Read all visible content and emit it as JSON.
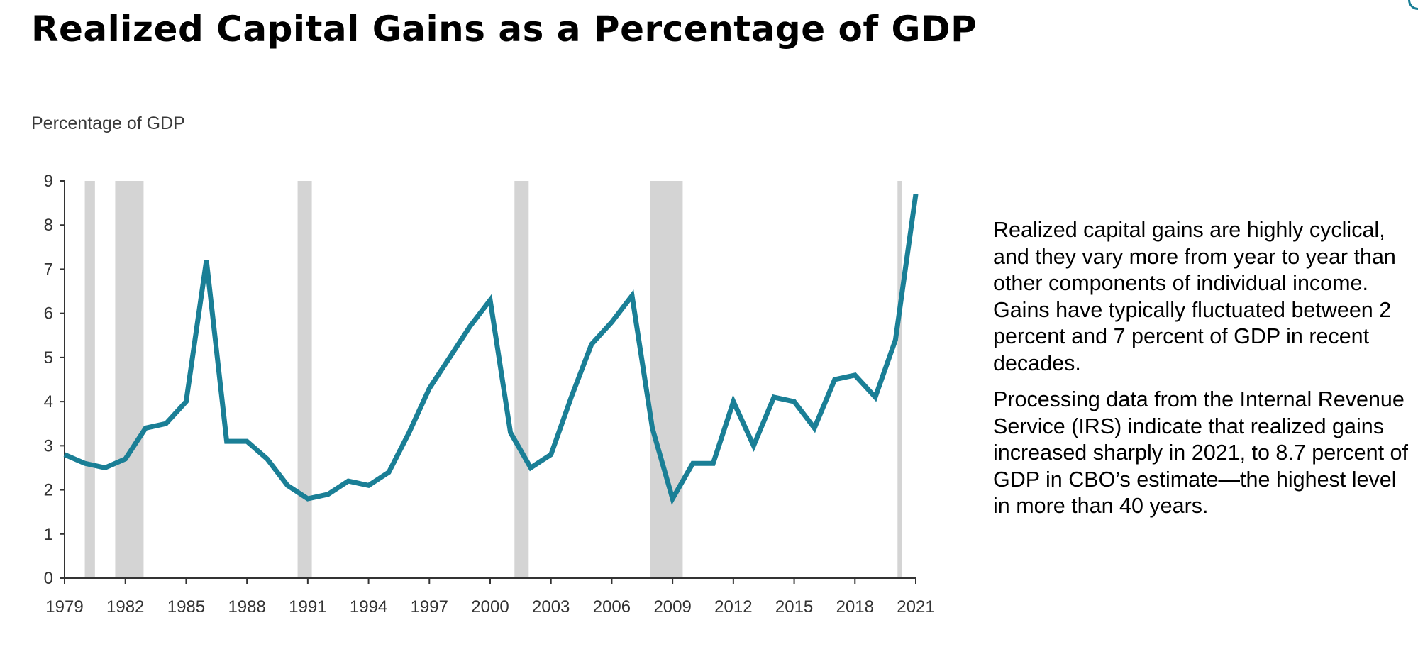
{
  "title": "Realized Capital Gains as a Percentage of GDP",
  "paragraphs": [
    "Realized capital gains are highly cyclical, and they vary more from year to year than other components of individual income. Gains have typically fluctuated between 2 percent and 7 percent of GDP in recent decades.",
    "Processing data from the Internal Revenue Service (IRS) indicate that realized gains increased sharply in 2021, to 8.7 percent of GDP in CBO’s estimate—the highest level in more than 40 years."
  ],
  "colors": {
    "line": "#1a7f96",
    "recession": "#d4d4d4",
    "axis": "#333333"
  },
  "chart_data": {
    "type": "line",
    "title": "",
    "xlabel": "",
    "ylabel": "Percentage of GDP",
    "xlim": [
      1979,
      2021
    ],
    "ylim": [
      0,
      9
    ],
    "yticks": [
      0,
      1,
      2,
      3,
      4,
      5,
      6,
      7,
      8,
      9
    ],
    "xticks": [
      1979,
      1982,
      1985,
      1988,
      1991,
      1994,
      1997,
      2000,
      2003,
      2006,
      2009,
      2012,
      2015,
      2018,
      2021
    ],
    "grid": false,
    "legend": "none",
    "recessions": [
      [
        1980.0,
        1980.5
      ],
      [
        1981.5,
        1982.9
      ],
      [
        1990.5,
        1991.2
      ],
      [
        2001.2,
        2001.9
      ],
      [
        2007.9,
        2009.5
      ],
      [
        2020.1,
        2020.3
      ]
    ],
    "series": [
      {
        "x": [
          1979,
          1980,
          1981,
          1982,
          1983,
          1984,
          1985,
          1986,
          1987,
          1988,
          1989,
          1990,
          1991,
          1992,
          1993,
          1994,
          1995,
          1996,
          1997,
          1998,
          1999,
          2000,
          2001,
          2002,
          2003,
          2004,
          2005,
          2006,
          2007,
          2008,
          2009,
          2010,
          2011,
          2012,
          2013,
          2014,
          2015,
          2016,
          2017,
          2018,
          2019,
          2020,
          2021
        ],
        "values": [
          2.8,
          2.6,
          2.5,
          2.7,
          3.4,
          3.5,
          4.0,
          7.2,
          3.1,
          3.1,
          2.7,
          2.1,
          1.8,
          1.9,
          2.2,
          2.1,
          2.4,
          3.3,
          4.3,
          5.0,
          5.7,
          6.3,
          3.3,
          2.5,
          2.8,
          4.1,
          5.3,
          5.8,
          6.4,
          3.4,
          1.8,
          2.6,
          2.6,
          4.0,
          3.0,
          4.1,
          4.0,
          3.4,
          4.5,
          4.6,
          4.1,
          5.4,
          8.7
        ]
      }
    ]
  }
}
